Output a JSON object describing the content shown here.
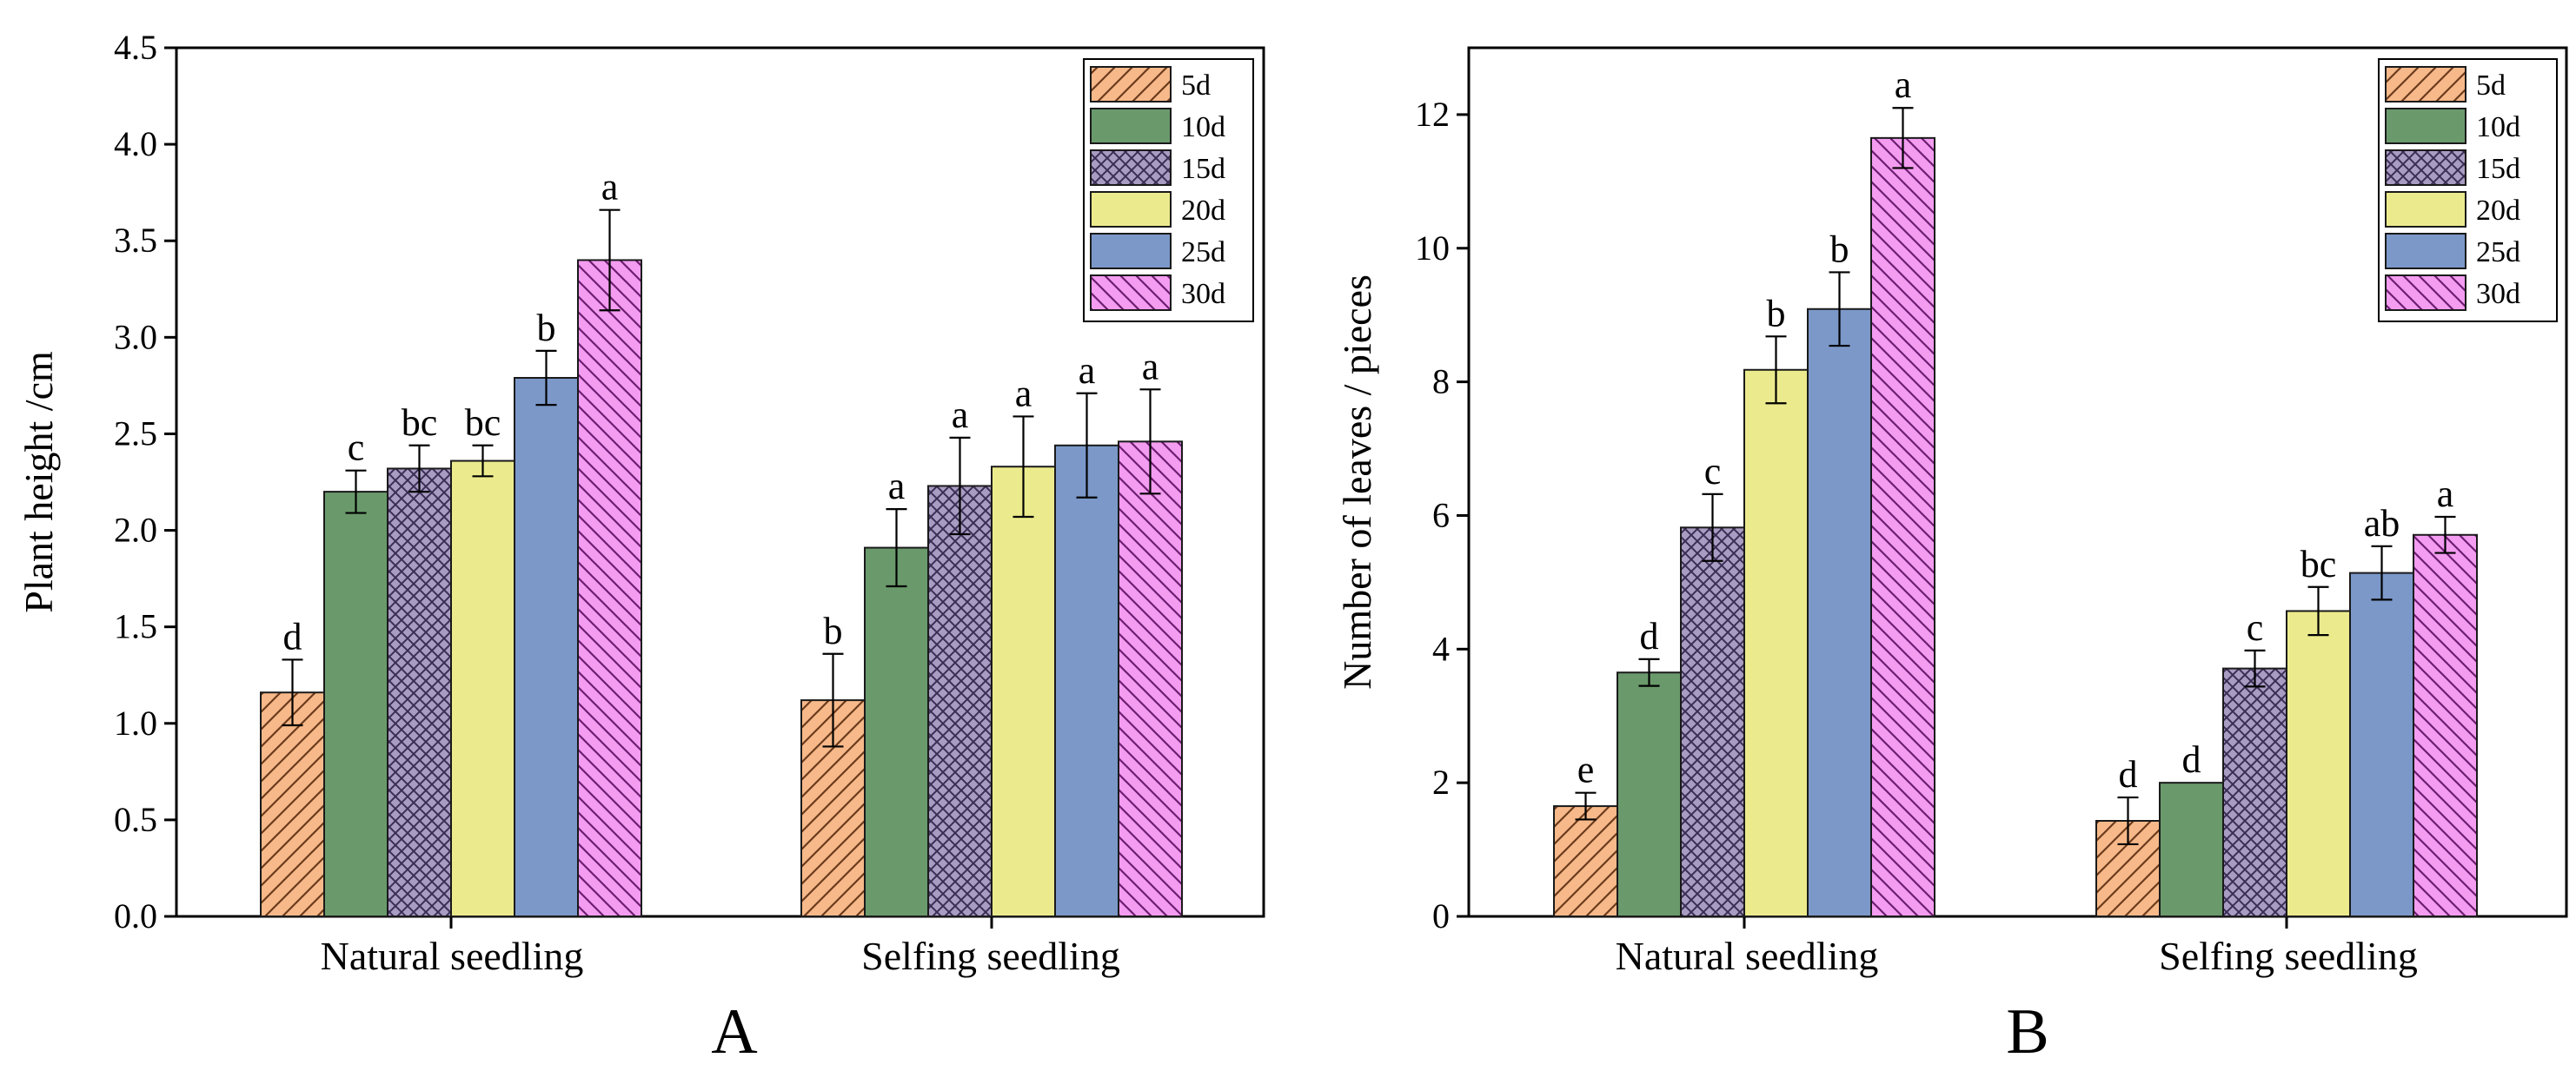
{
  "legend_labels": [
    "5d",
    "10d",
    "15d",
    "20d",
    "25d",
    "30d"
  ],
  "series_colors": [
    "#f7b98a",
    "#6a9a6c",
    "#a99cc2",
    "#ebeb8e",
    "#7b98c9",
    "#f39cf0"
  ],
  "chart_data": [
    {
      "type": "bar",
      "panel_label": "A",
      "ylabel": "Plant height /cm",
      "xlabel": "",
      "ylim": [
        0,
        4.5
      ],
      "yticks": [
        "0.0",
        "0.5",
        "1.0",
        "1.5",
        "2.0",
        "2.5",
        "3.0",
        "3.5",
        "4.0",
        "4.5"
      ],
      "categories": [
        "Natural seedling",
        "Selfing seedling"
      ],
      "legend_position": "top-right",
      "series": [
        {
          "name": "5d",
          "values": [
            1.16,
            1.12
          ],
          "errors": [
            0.17,
            0.24
          ],
          "letters": [
            "d",
            "b"
          ]
        },
        {
          "name": "10d",
          "values": [
            2.2,
            1.91
          ],
          "errors": [
            0.11,
            0.2
          ],
          "letters": [
            "c",
            "a"
          ]
        },
        {
          "name": "15d",
          "values": [
            2.32,
            2.23
          ],
          "errors": [
            0.12,
            0.25
          ],
          "letters": [
            "bc",
            "a"
          ]
        },
        {
          "name": "20d",
          "values": [
            2.36,
            2.33
          ],
          "errors": [
            0.08,
            0.26
          ],
          "letters": [
            "bc",
            "a"
          ]
        },
        {
          "name": "25d",
          "values": [
            2.79,
            2.44
          ],
          "errors": [
            0.14,
            0.27
          ],
          "letters": [
            "b",
            "a"
          ]
        },
        {
          "name": "30d",
          "values": [
            3.4,
            2.46
          ],
          "errors": [
            0.26,
            0.27
          ],
          "letters": [
            "a",
            "a"
          ]
        }
      ]
    },
    {
      "type": "bar",
      "panel_label": "B",
      "ylabel": "Number of leaves / pieces",
      "xlabel": "",
      "ylim": [
        0,
        13
      ],
      "yticks": [
        "0",
        "2",
        "4",
        "6",
        "8",
        "10",
        "12"
      ],
      "categories": [
        "Natural seedling",
        "Selfing seedling"
      ],
      "legend_position": "top-right",
      "series": [
        {
          "name": "5d",
          "values": [
            1.65,
            1.43
          ],
          "errors": [
            0.2,
            0.35
          ],
          "letters": [
            "e",
            "d"
          ]
        },
        {
          "name": "10d",
          "values": [
            3.65,
            2.0
          ],
          "errors": [
            0.2,
            0.0
          ],
          "letters": [
            "d",
            "d"
          ]
        },
        {
          "name": "15d",
          "values": [
            5.82,
            3.71
          ],
          "errors": [
            0.5,
            0.27
          ],
          "letters": [
            "c",
            "c"
          ]
        },
        {
          "name": "20d",
          "values": [
            8.18,
            4.57
          ],
          "errors": [
            0.5,
            0.36
          ],
          "letters": [
            "b",
            "bc"
          ]
        },
        {
          "name": "25d",
          "values": [
            9.09,
            5.14
          ],
          "errors": [
            0.55,
            0.4
          ],
          "letters": [
            "b",
            "ab"
          ]
        },
        {
          "name": "30d",
          "values": [
            11.65,
            5.71
          ],
          "errors": [
            0.45,
            0.27
          ],
          "letters": [
            "a",
            "a"
          ]
        }
      ]
    }
  ]
}
